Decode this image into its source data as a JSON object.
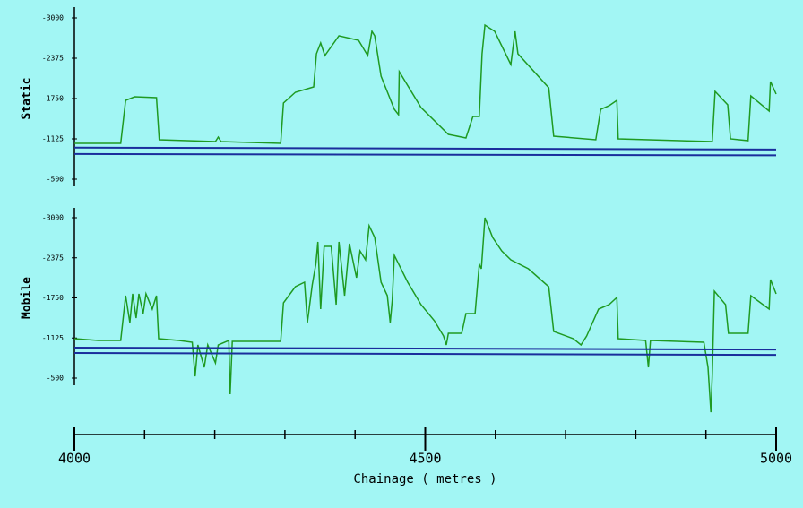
{
  "chart_data": [
    {
      "type": "line",
      "ylabel": "Static",
      "xlim": [
        4000,
        5000
      ],
      "ylim": [
        -500,
        -3000
      ],
      "yticks": [
        -3000,
        -2375,
        -1750,
        -1125,
        -500
      ],
      "series": [
        {
          "color": "#1f9a22",
          "x": [
            4000,
            4066,
            4073,
            4086,
            4117,
            4121,
            4201,
            4205,
            4209,
            4294,
            4298,
            4315,
            4341,
            4345,
            4351,
            4357,
            4377,
            4405,
            4418,
            4424,
            4428,
            4437,
            4456,
            4462,
            4463,
            4494,
            4533,
            4558,
            4568,
            4577,
            4581,
            4585,
            4599,
            4622,
            4628,
            4632,
            4676,
            4683,
            4743,
            4750,
            4762,
            4773,
            4775,
            4909,
            4913,
            4931,
            4935,
            4960,
            4964,
            4990,
            4992,
            5000
          ],
          "values": [
            -1055,
            -1055,
            -1722,
            -1778,
            -1764,
            -1111,
            -1083,
            -1153,
            -1083,
            -1055,
            -1680,
            -1847,
            -1930,
            -2445,
            -2611,
            -2417,
            -2722,
            -2653,
            -2417,
            -2792,
            -2722,
            -2097,
            -1583,
            -1500,
            -2167,
            -1611,
            -1194,
            -1139,
            -1472,
            -1472,
            -2445,
            -2889,
            -2792,
            -2278,
            -2792,
            -2445,
            -1917,
            -1167,
            -1111,
            -1583,
            -1639,
            -1722,
            -1125,
            -1083,
            -1861,
            -1653,
            -1125,
            -1097,
            -1792,
            -1555,
            -2014,
            -1820
          ]
        },
        {
          "color": "#1a2e9c",
          "x": [
            4000,
            5000
          ],
          "values": [
            -990,
            -960
          ]
        },
        {
          "color": "#1a2e9c",
          "x": [
            4000,
            5000
          ],
          "values": [
            -890,
            -870
          ]
        }
      ]
    },
    {
      "type": "line",
      "ylabel": "Mobile",
      "xlim": [
        4000,
        5000
      ],
      "ylim": [
        -500,
        -3000
      ],
      "yticks": [
        -3000,
        -2375,
        -1750,
        -1125,
        -500
      ],
      "xticks": [
        4000,
        4500,
        5000
      ],
      "xminorticks": [
        4100,
        4200,
        4300,
        4400,
        4600,
        4700,
        4800,
        4900
      ],
      "xlabel": "Chainage ( metres )",
      "series": [
        {
          "color": "#1f9a22",
          "x": [
            4000,
            4034,
            4066,
            4073,
            4079,
            4083,
            4088,
            4092,
            4098,
            4102,
            4111,
            4117,
            4120,
            4149,
            4168,
            4172,
            4176,
            4185,
            4190,
            4201,
            4205,
            4220,
            4222,
            4225,
            4294,
            4298,
            4315,
            4328,
            4332,
            4339,
            4344,
            4347,
            4351,
            4356,
            4366,
            4373,
            4377,
            4385,
            4392,
            4402,
            4407,
            4415,
            4420,
            4428,
            4437,
            4446,
            4450,
            4453,
            4456,
            4475,
            4494,
            4513,
            4526,
            4530,
            4533,
            4552,
            4558,
            4571,
            4577,
            4580,
            4585,
            4596,
            4609,
            4622,
            4647,
            4676,
            4683,
            4711,
            4722,
            4730,
            4747,
            4762,
            4773,
            4775,
            4814,
            4818,
            4821,
            4897,
            4903,
            4907,
            4909,
            4912,
            4928,
            4932,
            4960,
            4964,
            4990,
            4992,
            5000
          ],
          "values": [
            -1115,
            -1087,
            -1087,
            -1785,
            -1366,
            -1813,
            -1436,
            -1813,
            -1506,
            -1813,
            -1576,
            -1785,
            -1115,
            -1087,
            -1059,
            -528,
            -1017,
            -667,
            -1017,
            -737,
            -1017,
            -1087,
            -248,
            -1073,
            -1073,
            -1673,
            -1925,
            -1994,
            -1366,
            -1953,
            -2274,
            -2623,
            -1576,
            -2553,
            -2553,
            -1645,
            -2623,
            -1785,
            -2595,
            -2064,
            -2483,
            -2344,
            -2874,
            -2693,
            -1994,
            -1785,
            -1366,
            -1715,
            -2414,
            -1994,
            -1645,
            -1394,
            -1157,
            -1017,
            -1199,
            -1199,
            -1506,
            -1506,
            -2274,
            -2204,
            -3000,
            -2693,
            -2483,
            -2344,
            -2204,
            -1925,
            -1227,
            -1115,
            -1017,
            -1157,
            -1576,
            -1645,
            -1757,
            -1115,
            -1087,
            -667,
            -1087,
            -1059,
            -667,
            32,
            -528,
            -1855,
            -1645,
            -1199,
            -1199,
            -1785,
            -1576,
            -2037,
            -1813
          ]
        },
        {
          "color": "#1a2e9c",
          "x": [
            4000,
            5000
          ],
          "values": [
            -975,
            -945
          ]
        },
        {
          "color": "#1a2e9c",
          "x": [
            4000,
            5000
          ],
          "values": [
            -891,
            -862
          ]
        }
      ]
    }
  ]
}
